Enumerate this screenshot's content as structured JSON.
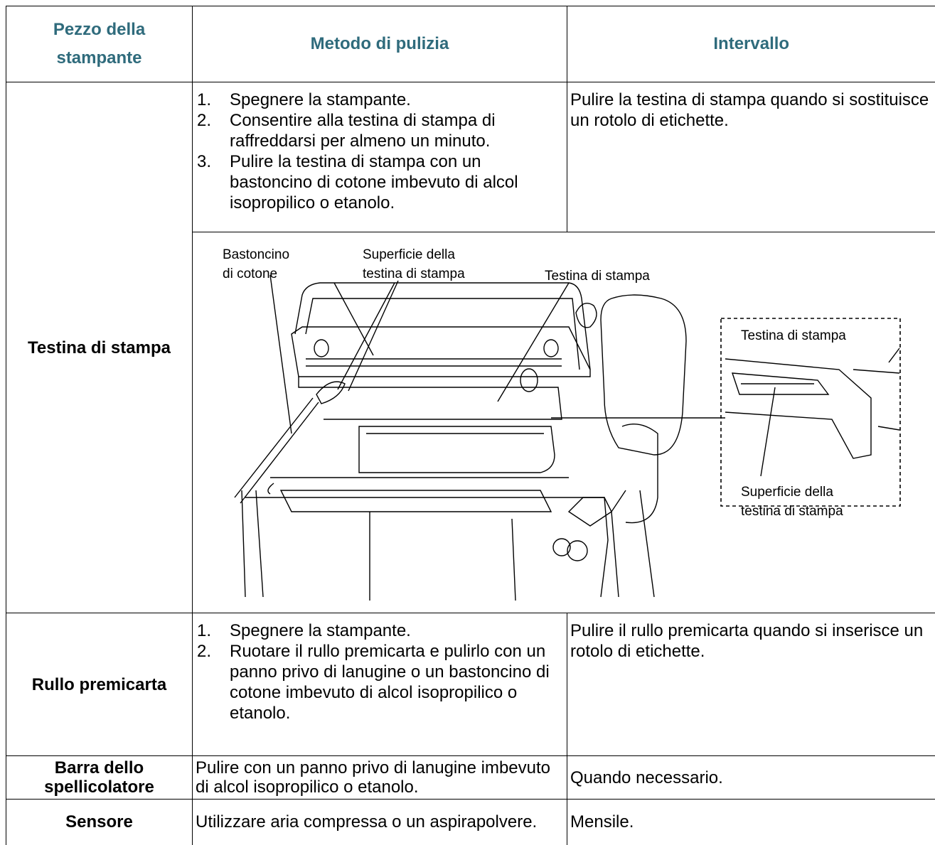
{
  "table": {
    "header": [
      "Pezzo della stampante",
      "Metodo di pulizia",
      "Intervallo"
    ],
    "rows": [
      {
        "part": "Testina di stampa",
        "method": [
          {
            "n": "1.",
            "text": "Spegnere la stampante."
          },
          {
            "n": "2.",
            "text": "Consentire alla testina di stampa di raffreddarsi per almeno un minuto."
          },
          {
            "n": "3.",
            "text": "Pulire la testina di stampa con un bastoncino di cotone imbevuto di alcol isopropilico o etanolo."
          }
        ],
        "interval": "Pulire la testina di stampa quando si sostituisce un rotolo di etichette."
      },
      {
        "part": "Rullo premicarta",
        "method": [
          {
            "n": "1.",
            "text": "Spegnere la stampante."
          },
          {
            "n": "2.",
            "text": "Ruotare il rullo premicarta e pulirlo con un panno privo di lanugine o un bastoncino di cotone imbevuto di alcol isopropilico o etanolo."
          }
        ],
        "interval": "Pulire il rullo premicarta quando si inserisce un rotolo di etichette."
      },
      {
        "part": "Barra dello spellicolatore",
        "method": "Pulire con un panno privo di lanugine imbevuto di alcol isopropilico o etanolo.",
        "interval": "Quando necessario."
      },
      {
        "part": "Sensore",
        "method": "Utilizzare aria compressa o un aspirapolvere.",
        "interval": "Mensile."
      }
    ]
  },
  "figure": {
    "swab_label": [
      "Bastoncino",
      "di cotone"
    ],
    "surface_label": [
      "Superficie della",
      "testina di stampa"
    ],
    "head_label": "Testina di stampa",
    "inset_head_label": "Testina di stampa",
    "inset_surface_label": [
      "Superficie della",
      "testina di stampa"
    ]
  }
}
